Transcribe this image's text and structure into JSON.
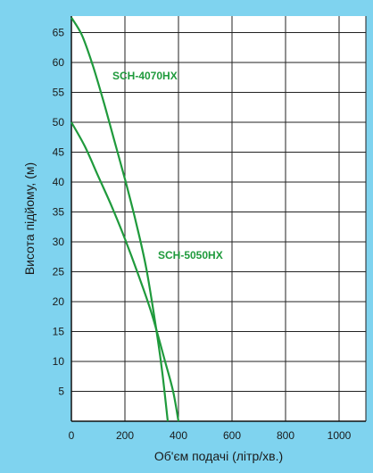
{
  "chart_data": {
    "type": "line",
    "title": "",
    "xlabel": "Об'єм подачі (літр/хв.)",
    "ylabel": "Висота підйому, (м)",
    "xlim": [
      0,
      1100
    ],
    "ylim": [
      0,
      68
    ],
    "x_ticks": [
      "0",
      "200",
      "400",
      "600",
      "800",
      "1000"
    ],
    "x_tick_values": [
      0,
      200,
      400,
      600,
      800,
      1000
    ],
    "y_ticks": [
      "5",
      "10",
      "15",
      "20",
      "25",
      "30",
      "35",
      "40",
      "45",
      "50",
      "55",
      "60",
      "65"
    ],
    "y_tick_values": [
      5,
      10,
      15,
      20,
      25,
      30,
      35,
      40,
      45,
      50,
      55,
      60,
      65
    ],
    "grid": true,
    "colors": {
      "background": "#7fd3ef",
      "plot": "#ffffff",
      "grid": "#222222",
      "line": "#1f9a3c"
    },
    "series": [
      {
        "name": "SCH-4070HX",
        "x": [
          0,
          40,
          80,
          120,
          160,
          200,
          240,
          280,
          320,
          340,
          360
        ],
        "y": [
          67.5,
          64.5,
          59.5,
          53.5,
          47,
          40.5,
          33.5,
          25.5,
          14.5,
          8,
          0
        ]
      },
      {
        "name": "SCH-5050HX",
        "x": [
          0,
          50,
          100,
          150,
          200,
          250,
          300,
          350,
          380,
          400
        ],
        "y": [
          50,
          46,
          41,
          36,
          30.5,
          24.5,
          18,
          10,
          5,
          0
        ]
      }
    ]
  }
}
